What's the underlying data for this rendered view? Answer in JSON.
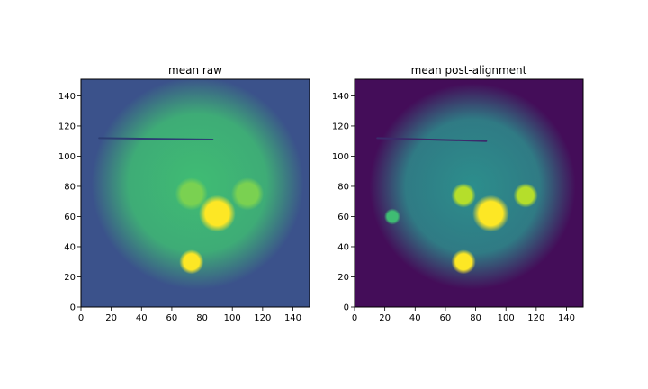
{
  "chart_data": [
    {
      "type": "heatmap",
      "title": "mean raw",
      "xlim": [
        0,
        151
      ],
      "ylim": [
        0,
        151
      ],
      "x_ticks": [
        0,
        20,
        40,
        60,
        80,
        100,
        120,
        140
      ],
      "y_ticks": [
        0,
        20,
        40,
        60,
        80,
        100,
        120,
        140
      ],
      "background_color": "#3b528b",
      "halo": {
        "cx": 77,
        "cy": 82,
        "r": 70,
        "color": "#3fbc73"
      },
      "blobs": [
        {
          "cx": 90,
          "cy": 62,
          "r": 9,
          "color": "#fde725"
        },
        {
          "cx": 73,
          "cy": 30,
          "r": 6,
          "color": "#fde725"
        },
        {
          "cx": 73,
          "cy": 75,
          "r": 8,
          "color": "#7ad151"
        },
        {
          "cx": 110,
          "cy": 75,
          "r": 8,
          "color": "#7ad151"
        }
      ],
      "streak": {
        "x1": 12,
        "y1": 112,
        "x2": 87,
        "y2": 111,
        "color": "#2c3e73"
      }
    },
    {
      "type": "heatmap",
      "title": "mean post-alignment",
      "xlim": [
        0,
        151
      ],
      "ylim": [
        0,
        151
      ],
      "x_ticks": [
        0,
        20,
        40,
        60,
        80,
        100,
        120,
        140
      ],
      "y_ticks": [
        0,
        20,
        40,
        60,
        80,
        100,
        120,
        140
      ],
      "background_color": "#440d59",
      "halo": {
        "cx": 78,
        "cy": 80,
        "r": 68,
        "color": "#2c8e8c"
      },
      "blobs": [
        {
          "cx": 90,
          "cy": 62,
          "r": 9,
          "color": "#fde725"
        },
        {
          "cx": 72,
          "cy": 30,
          "r": 6,
          "color": "#fde725"
        },
        {
          "cx": 72,
          "cy": 74,
          "r": 6,
          "color": "#b5de2b"
        },
        {
          "cx": 113,
          "cy": 74,
          "r": 6,
          "color": "#b5de2b"
        },
        {
          "cx": 25,
          "cy": 60,
          "r": 4,
          "color": "#3fbc73"
        }
      ],
      "streak": {
        "x1": 15,
        "y1": 112,
        "x2": 87,
        "y2": 110,
        "color": "#3b2a6b"
      }
    }
  ]
}
